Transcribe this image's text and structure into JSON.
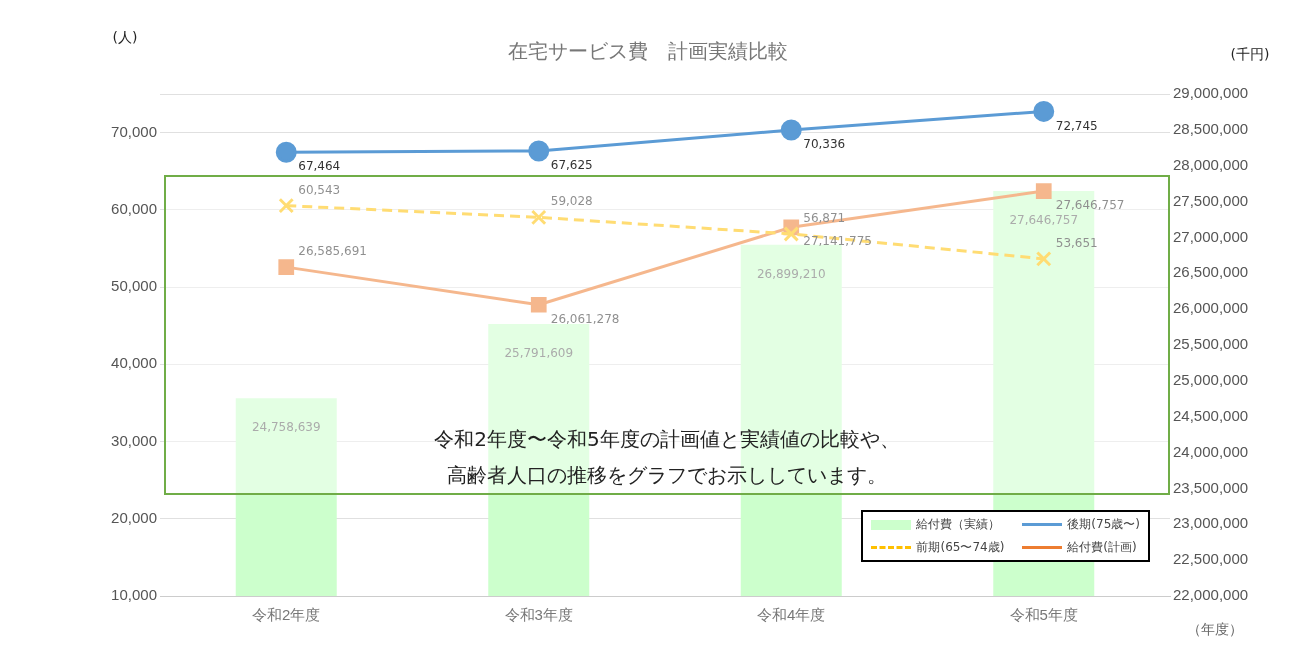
{
  "chart_data": {
    "type": "bar",
    "title": "在宅サービス費　計画実績比較",
    "xlabel": "（年度）",
    "ylabel": "(人)",
    "y2label": "(千円)",
    "categories": [
      "令和2年度",
      "令和3年度",
      "令和4年度",
      "令和5年度"
    ],
    "series": [
      {
        "name": "給付費（実績）",
        "axis": "y2",
        "color": "#ccffcc",
        "values": [
          24758639,
          25791609,
          26899210,
          27646757
        ],
        "value_labels": [
          "24,758,639",
          "25,791,609",
          "26,899,210",
          "27,646,757"
        ]
      },
      {
        "name": "後期(75歳〜)",
        "type": "line",
        "axis": "y",
        "color": "#5b9bd5",
        "marker": "circle",
        "line_style": "solid",
        "values": [
          67464,
          67625,
          70336,
          72745
        ],
        "value_labels": [
          "67,464",
          "67,625",
          "70,336",
          "72,745"
        ]
      },
      {
        "name": "前期(65〜74歳)",
        "type": "line",
        "axis": "y",
        "color": "#ffc000",
        "marker": "cross",
        "line_style": "dashed",
        "values": [
          60543,
          59028,
          56871,
          53651
        ],
        "value_labels": [
          "60,543",
          "59,028",
          "56,871",
          "53,651"
        ]
      },
      {
        "name": "給付費(計画)",
        "type": "line",
        "axis": "y2",
        "color": "#ed7d31",
        "marker": "square",
        "line_style": "solid",
        "values": [
          26585691,
          26061278,
          27141775,
          27646757
        ],
        "value_labels": [
          "26,585,691",
          "26,061,278",
          "27,141,775",
          "27,646,757"
        ]
      }
    ],
    "ylim": [
      10000,
      75000
    ],
    "yticks": [
      {
        "value": 10000,
        "label": "10,000"
      },
      {
        "value": 20000,
        "label": "20,000"
      },
      {
        "value": 30000,
        "label": "30,000"
      },
      {
        "value": 40000,
        "label": "40,000"
      },
      {
        "value": 50000,
        "label": "50,000"
      },
      {
        "value": 60000,
        "label": "60,000"
      },
      {
        "value": 70000,
        "label": "70,000"
      },
      {
        "value": 75000,
        "label": null
      }
    ],
    "y2lim": [
      22000000,
      29000000
    ],
    "y2ticks": [
      {
        "value": 22000000,
        "label": "22,000,000"
      },
      {
        "value": 22500000,
        "label": "22,500,000"
      },
      {
        "value": 23000000,
        "label": "23,000,000"
      },
      {
        "value": 23500000,
        "label": "23,500,000"
      },
      {
        "value": 24000000,
        "label": "24,000,000"
      },
      {
        "value": 24500000,
        "label": "24,500,000"
      },
      {
        "value": 25000000,
        "label": "25,000,000"
      },
      {
        "value": 25500000,
        "label": "25,500,000"
      },
      {
        "value": 26000000,
        "label": "26,000,000"
      },
      {
        "value": 26500000,
        "label": "26,500,000"
      },
      {
        "value": 27000000,
        "label": "27,000,000"
      },
      {
        "value": 27500000,
        "label": "27,500,000"
      },
      {
        "value": 28000000,
        "label": "28,000,000"
      },
      {
        "value": 28500000,
        "label": "28,500,000"
      },
      {
        "value": 29000000,
        "label": "29,000,000"
      }
    ],
    "grid": "y",
    "legend": "bottom right",
    "annotations": [
      "令和2年度〜令和5年度の計画値と実績値の比較や、",
      "高齢者人口の推移をグラフでお示ししています。"
    ]
  }
}
